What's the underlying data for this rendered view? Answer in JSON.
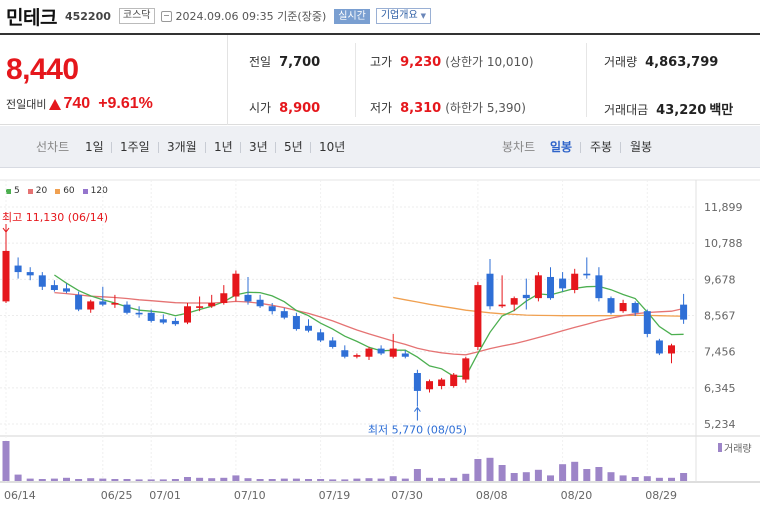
{
  "header": {
    "name": "민테크",
    "code": "452200",
    "market": "코스닥",
    "date": "2024.09.06 09:35 기준(장중)",
    "realtime": "실시간",
    "overview": "기업개요"
  },
  "quote": {
    "price": "8,440",
    "change_label": "전일대비",
    "change": "740",
    "change_pct": "+9.61%",
    "prev_close": {
      "label": "전일",
      "value": "7,700"
    },
    "open": {
      "label": "시가",
      "value": "8,900"
    },
    "high": {
      "label": "고가",
      "value": "9,230",
      "sub": "(상한가 10,010)"
    },
    "low": {
      "label": "저가",
      "value": "8,310",
      "sub": "(하한가 5,390)"
    },
    "volume": {
      "label": "거래량",
      "value": "4,863,799"
    },
    "amount": {
      "label": "거래대금",
      "value": "43,220",
      "unit": "백만"
    }
  },
  "periods": {
    "label": "선차트",
    "items": [
      "1일",
      "1주일",
      "3개월",
      "1년",
      "3년",
      "5년",
      "10년"
    ],
    "candle_label": "봉차트",
    "candle_items": [
      "일봉",
      "주봉",
      "월봉"
    ],
    "selected": "일봉"
  },
  "colors": {
    "up": "#e5171c",
    "down": "#2f6fd6",
    "ma5": "#4caf50",
    "ma20": "#e57373",
    "ma60": "#f0a050",
    "ma120": "#9575cd",
    "volume": "#9d85c8"
  },
  "chart_data": {
    "type": "candlestick",
    "legend": [
      "5",
      "20",
      "60",
      "120"
    ],
    "y_ticks": [
      "11,899",
      "10,788",
      "9,678",
      "8,567",
      "7,456",
      "6,345",
      "5,234"
    ],
    "ylim": [
      5234,
      11899
    ],
    "x_ticks": [
      "06/14",
      "06/25",
      "07/01",
      "07/10",
      "07/19",
      "07/30",
      "08/08",
      "08/20",
      "08/29"
    ],
    "volume_label": "거래량",
    "high_annotation": "최고 11,130 (06/14)",
    "low_annotation": "최저 5,770 (08/05)",
    "candles": [
      {
        "o": 9000,
        "h": 11130,
        "l": 8950,
        "c": 10550
      },
      {
        "o": 10100,
        "h": 10350,
        "l": 9700,
        "c": 9900
      },
      {
        "o": 9900,
        "h": 10050,
        "l": 9650,
        "c": 9800
      },
      {
        "o": 9800,
        "h": 9900,
        "l": 9350,
        "c": 9450
      },
      {
        "o": 9500,
        "h": 9650,
        "l": 9300,
        "c": 9350
      },
      {
        "o": 9400,
        "h": 9550,
        "l": 9250,
        "c": 9300
      },
      {
        "o": 9200,
        "h": 9300,
        "l": 8700,
        "c": 8750
      },
      {
        "o": 8750,
        "h": 9050,
        "l": 8650,
        "c": 9000
      },
      {
        "o": 9000,
        "h": 9450,
        "l": 8850,
        "c": 8900
      },
      {
        "o": 8900,
        "h": 9200,
        "l": 8800,
        "c": 8950
      },
      {
        "o": 8900,
        "h": 9000,
        "l": 8600,
        "c": 8650
      },
      {
        "o": 8650,
        "h": 8850,
        "l": 8500,
        "c": 8600
      },
      {
        "o": 8650,
        "h": 8750,
        "l": 8350,
        "c": 8400
      },
      {
        "o": 8450,
        "h": 8600,
        "l": 8300,
        "c": 8350
      },
      {
        "o": 8400,
        "h": 8500,
        "l": 8250,
        "c": 8300
      },
      {
        "o": 8350,
        "h": 8950,
        "l": 8300,
        "c": 8850
      },
      {
        "o": 8800,
        "h": 9150,
        "l": 8700,
        "c": 8850
      },
      {
        "o": 8850,
        "h": 9200,
        "l": 8800,
        "c": 8950
      },
      {
        "o": 8950,
        "h": 9500,
        "l": 8900,
        "c": 9250
      },
      {
        "o": 9150,
        "h": 9950,
        "l": 9000,
        "c": 9850
      },
      {
        "o": 9200,
        "h": 9750,
        "l": 8900,
        "c": 9000
      },
      {
        "o": 9050,
        "h": 9200,
        "l": 8800,
        "c": 8850
      },
      {
        "o": 8850,
        "h": 8950,
        "l": 8600,
        "c": 8700
      },
      {
        "o": 8700,
        "h": 8800,
        "l": 8450,
        "c": 8500
      },
      {
        "o": 8550,
        "h": 8650,
        "l": 8100,
        "c": 8150
      },
      {
        "o": 8250,
        "h": 8450,
        "l": 8050,
        "c": 8100
      },
      {
        "o": 8050,
        "h": 8150,
        "l": 7750,
        "c": 7800
      },
      {
        "o": 7800,
        "h": 7900,
        "l": 7550,
        "c": 7600
      },
      {
        "o": 7500,
        "h": 7650,
        "l": 7250,
        "c": 7300
      },
      {
        "o": 7300,
        "h": 7400,
        "l": 7250,
        "c": 7350
      },
      {
        "o": 7300,
        "h": 7600,
        "l": 7200,
        "c": 7550
      },
      {
        "o": 7550,
        "h": 7650,
        "l": 7350,
        "c": 7400
      },
      {
        "o": 7300,
        "h": 8000,
        "l": 7250,
        "c": 7550
      },
      {
        "o": 7400,
        "h": 7500,
        "l": 7250,
        "c": 7300
      },
      {
        "o": 6800,
        "h": 6900,
        "l": 5770,
        "c": 6250
      },
      {
        "o": 6300,
        "h": 6600,
        "l": 6200,
        "c": 6550
      },
      {
        "o": 6400,
        "h": 6650,
        "l": 6300,
        "c": 6600
      },
      {
        "o": 6400,
        "h": 6800,
        "l": 6350,
        "c": 6750
      },
      {
        "o": 6600,
        "h": 7300,
        "l": 6500,
        "c": 7250
      },
      {
        "o": 7600,
        "h": 9600,
        "l": 7500,
        "c": 9500
      },
      {
        "o": 9850,
        "h": 10300,
        "l": 8750,
        "c": 8850
      },
      {
        "o": 8850,
        "h": 9800,
        "l": 8800,
        "c": 8900
      },
      {
        "o": 8900,
        "h": 9150,
        "l": 8700,
        "c": 9100
      },
      {
        "o": 9200,
        "h": 9700,
        "l": 8750,
        "c": 9100
      },
      {
        "o": 9100,
        "h": 9900,
        "l": 9000,
        "c": 9800
      },
      {
        "o": 9750,
        "h": 10050,
        "l": 9050,
        "c": 9100
      },
      {
        "o": 9700,
        "h": 9900,
        "l": 9300,
        "c": 9400
      },
      {
        "o": 9350,
        "h": 10000,
        "l": 9250,
        "c": 9850
      },
      {
        "o": 9850,
        "h": 10350,
        "l": 9700,
        "c": 9800
      },
      {
        "o": 9800,
        "h": 10050,
        "l": 9000,
        "c": 9100
      },
      {
        "o": 9100,
        "h": 9150,
        "l": 8600,
        "c": 8650
      },
      {
        "o": 8700,
        "h": 9050,
        "l": 8650,
        "c": 8950
      },
      {
        "o": 8950,
        "h": 9000,
        "l": 8550,
        "c": 8650
      },
      {
        "o": 8700,
        "h": 8750,
        "l": 7900,
        "c": 8000
      },
      {
        "o": 7800,
        "h": 7850,
        "l": 7350,
        "c": 7400
      },
      {
        "o": 7400,
        "h": 7700,
        "l": 7100,
        "c": 7650
      },
      {
        "o": 8900,
        "h": 9230,
        "l": 8310,
        "c": 8440
      }
    ],
    "volumes": [
      100,
      16,
      6,
      5,
      6,
      8,
      5,
      7,
      6,
      5,
      5,
      4,
      4,
      4,
      5,
      10,
      8,
      7,
      8,
      14,
      7,
      5,
      5,
      6,
      6,
      5,
      5,
      4,
      4,
      6,
      7,
      6,
      12,
      6,
      30,
      8,
      7,
      8,
      18,
      55,
      58,
      40,
      20,
      22,
      28,
      14,
      42,
      48,
      30,
      35,
      22,
      14,
      10,
      12,
      8,
      8,
      20
    ],
    "ma5": [
      null,
      null,
      null,
      null,
      9810,
      9560,
      9330,
      9170,
      9050,
      8950,
      8830,
      8730,
      8700,
      8660,
      8560,
      8640,
      8750,
      8850,
      8990,
      9200,
      9280,
      9270,
      9170,
      8990,
      8720,
      8560,
      8330,
      8150,
      7930,
      7770,
      7590,
      7480,
      7500,
      7500,
      7290,
      7020,
      6930,
      6700,
      6700,
      7400,
      8050,
      8550,
      8720,
      9010,
      9230,
      9200,
      9300,
      9400,
      9450,
      9460,
      9360,
      9210,
      9090,
      8670,
      8230,
      7980,
      7990
    ],
    "ma20": [
      null,
      null,
      null,
      null,
      9270,
      9240,
      9200,
      9160,
      9140,
      9120,
      9090,
      9050,
      9020,
      8990,
      8960,
      8950,
      8950,
      8950,
      8970,
      9000,
      8980,
      8940,
      8880,
      8810,
      8720,
      8630,
      8520,
      8400,
      8260,
      8120,
      8000,
      7890,
      7780,
      7680,
      7560,
      7480,
      7420,
      7380,
      7360,
      7450,
      7550,
      7630,
      7700,
      7790,
      7890,
      7990,
      8100,
      8200,
      8300,
      8400,
      8480,
      8560,
      8620,
      8660,
      8680,
      8700,
      8780
    ],
    "ma60": [
      null,
      null,
      null,
      null,
      null,
      null,
      null,
      null,
      null,
      null,
      null,
      null,
      null,
      null,
      null,
      null,
      null,
      null,
      null,
      null,
      null,
      null,
      null,
      null,
      null,
      null,
      null,
      null,
      null,
      null,
      null,
      null,
      9120,
      9050,
      8980,
      8910,
      8850,
      8790,
      8730,
      8690,
      8650,
      8620,
      8600,
      8580,
      8570,
      8565,
      8560,
      8560,
      8560,
      8560,
      8560,
      8565,
      8570,
      8570,
      8560,
      8550,
      8545
    ]
  }
}
